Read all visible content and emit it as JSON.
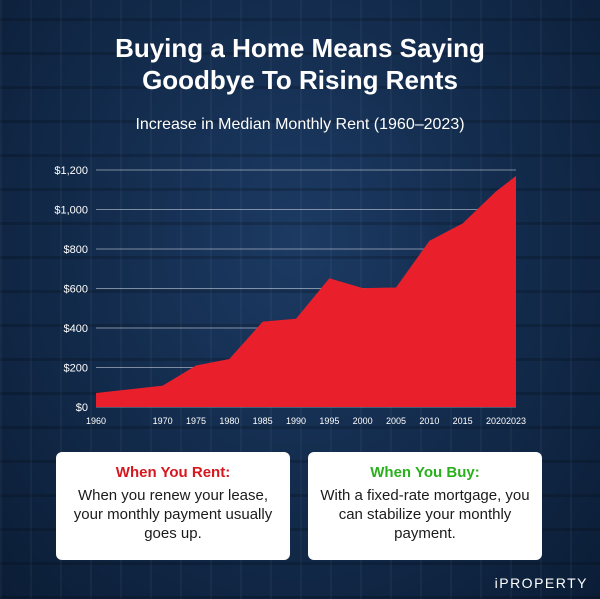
{
  "title_line1": "Buying a Home Means Saying",
  "title_line2": "Goodbye To Rising Rents",
  "cards": {
    "rent": {
      "heading": "When You Rent:",
      "body": "When you renew your lease, your monthly payment usually goes up.",
      "heading_color": "#d7171f"
    },
    "buy": {
      "heading": "When You Buy:",
      "body": "With a fixed-rate mortgage, you can stabilize your monthly payment.",
      "heading_color": "#2bb01d"
    }
  },
  "brand": "iPROPERTY",
  "colors": {
    "area_fill": "#e9202b",
    "background": "#0f2440"
  },
  "chart_data": {
    "type": "area",
    "title": "Increase in Median Monthly Rent (1960–2023)",
    "x": [
      1960,
      1970,
      1975,
      1980,
      1985,
      1990,
      1995,
      2000,
      2005,
      2010,
      2015,
      2020,
      2023
    ],
    "series": [
      {
        "values": [
          71,
          108,
          210,
          243,
          432,
          447,
          652,
          602,
          605,
          841,
          930,
          1092,
          1170
        ]
      }
    ],
    "ylim": [
      0,
      1200
    ],
    "yticks": [
      0,
      200,
      400,
      600,
      800,
      1000,
      1200
    ],
    "ytick_labels": [
      "$0",
      "$200",
      "$400",
      "$600",
      "$800",
      "$1,000",
      "$1,200"
    ],
    "xtick_labels": [
      "1960",
      "1970",
      "1975",
      "1980",
      "1985",
      "1990",
      "1995",
      "2000",
      "2005",
      "2010",
      "2015",
      "2020",
      "2023"
    ],
    "grid": true,
    "xlabel": "",
    "ylabel": ""
  }
}
